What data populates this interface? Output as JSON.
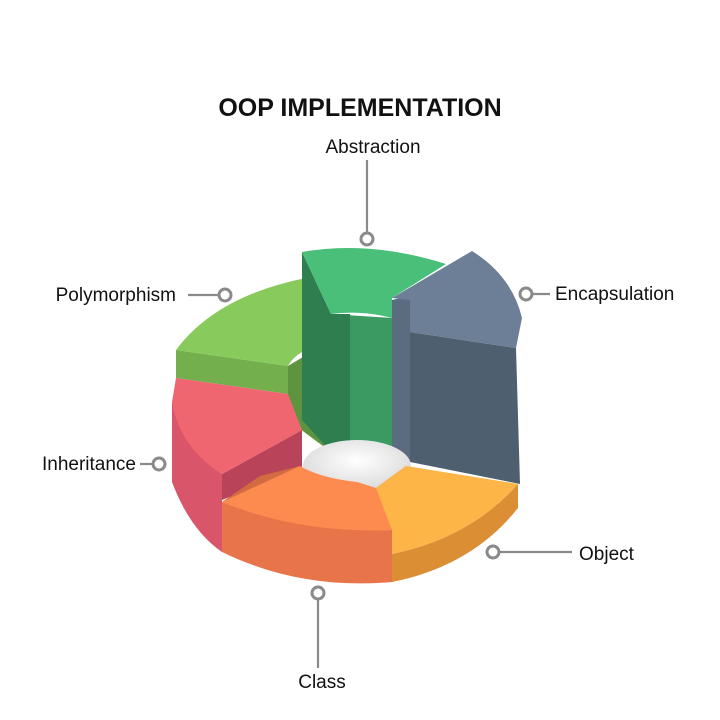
{
  "title": "OOP IMPLEMENTATION",
  "segments": [
    {
      "label": "Abstraction",
      "top": "#49BF7A",
      "side": "#3A9A62",
      "inner": "#2E7E50",
      "wall": "#2A704A"
    },
    {
      "label": "Encapsulation",
      "top": "#6D7F97",
      "side": "#4E6070",
      "inner": "#435364",
      "wall": "#3B4A59"
    },
    {
      "label": "Object",
      "top": "#FDB547",
      "side": "#DB8E33",
      "inner": "#C88532",
      "wall": "#B87A2E"
    },
    {
      "label": "Class",
      "top": "#FD8A4E",
      "side": "#E8744A",
      "inner": "#D26A42",
      "wall": "#C55F3B"
    },
    {
      "label": "Inheritance",
      "top": "#F06670",
      "side": "#D9566A",
      "inner": "#B94358",
      "wall": "#A83C50"
    },
    {
      "label": "Polymorphism",
      "top": "#88CB5C",
      "side": "#73AF4D",
      "inner": "#5E9440",
      "wall": "#588B3C"
    }
  ]
}
